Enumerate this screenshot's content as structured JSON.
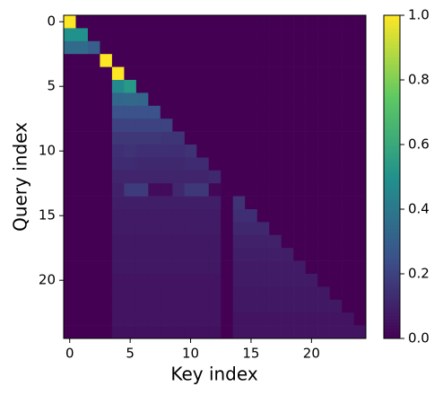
{
  "chart_data": {
    "type": "heatmap",
    "xlabel": "Key index",
    "ylabel": "Query index",
    "xlim": [
      -0.5,
      24.5
    ],
    "ylim": [
      -0.5,
      24.5
    ],
    "y_inverted": true,
    "xticks": [
      0,
      5,
      10,
      15,
      20
    ],
    "yticks": [
      0,
      5,
      10,
      15,
      20
    ],
    "colormap": "viridis",
    "clim": [
      0,
      1
    ],
    "cticks": [
      {
        "value": 0,
        "label": "0.0"
      },
      {
        "value": 0.2,
        "label": "0.2"
      },
      {
        "value": 0.4,
        "label": "0.4"
      },
      {
        "value": 0.6,
        "label": "0.6"
      },
      {
        "value": 0.8,
        "label": "0.8"
      },
      {
        "value": 1,
        "label": "1.0"
      }
    ],
    "z": [
      [
        1,
        0,
        0,
        0,
        0,
        0,
        0,
        0,
        0,
        0,
        0,
        0,
        0,
        0,
        0,
        0,
        0,
        0,
        0,
        0,
        0,
        0,
        0,
        0,
        0
      ],
      [
        0.5,
        0.5,
        0,
        0,
        0,
        0,
        0,
        0,
        0,
        0,
        0,
        0,
        0,
        0,
        0,
        0,
        0,
        0,
        0,
        0,
        0,
        0,
        0,
        0,
        0
      ],
      [
        0.35,
        0.35,
        0.3,
        0,
        0,
        0,
        0,
        0,
        0,
        0,
        0,
        0,
        0,
        0,
        0,
        0,
        0,
        0,
        0,
        0,
        0,
        0,
        0,
        0,
        0
      ],
      [
        0,
        0,
        0,
        1,
        0,
        0,
        0,
        0,
        0,
        0,
        0,
        0,
        0,
        0,
        0,
        0,
        0,
        0,
        0,
        0,
        0,
        0,
        0,
        0,
        0
      ],
      [
        0,
        0,
        0,
        0,
        1,
        0,
        0,
        0,
        0,
        0,
        0,
        0,
        0,
        0,
        0,
        0,
        0,
        0,
        0,
        0,
        0,
        0,
        0,
        0,
        0
      ],
      [
        0,
        0,
        0,
        0,
        0.47,
        0.53,
        0,
        0,
        0,
        0,
        0,
        0,
        0,
        0,
        0,
        0,
        0,
        0,
        0,
        0,
        0,
        0,
        0,
        0,
        0
      ],
      [
        0,
        0,
        0,
        0,
        0.33,
        0.34,
        0.33,
        0,
        0,
        0,
        0,
        0,
        0,
        0,
        0,
        0,
        0,
        0,
        0,
        0,
        0,
        0,
        0,
        0,
        0
      ],
      [
        0,
        0,
        0,
        0,
        0.25,
        0.25,
        0.25,
        0.25,
        0,
        0,
        0,
        0,
        0,
        0,
        0,
        0,
        0,
        0,
        0,
        0,
        0,
        0,
        0,
        0,
        0
      ],
      [
        0,
        0,
        0,
        0,
        0.2,
        0.2,
        0.2,
        0.2,
        0.2,
        0,
        0,
        0,
        0,
        0,
        0,
        0,
        0,
        0,
        0,
        0,
        0,
        0,
        0,
        0,
        0
      ],
      [
        0,
        0,
        0,
        0,
        0.17,
        0.17,
        0.17,
        0.17,
        0.16,
        0.16,
        0,
        0,
        0,
        0,
        0,
        0,
        0,
        0,
        0,
        0,
        0,
        0,
        0,
        0,
        0
      ],
      [
        0,
        0,
        0,
        0,
        0.14,
        0.15,
        0.14,
        0.14,
        0.14,
        0.14,
        0.15,
        0,
        0,
        0,
        0,
        0,
        0,
        0,
        0,
        0,
        0,
        0,
        0,
        0,
        0
      ],
      [
        0,
        0,
        0,
        0,
        0.13,
        0.13,
        0.12,
        0.12,
        0.12,
        0.12,
        0.13,
        0.13,
        0,
        0,
        0,
        0,
        0,
        0,
        0,
        0,
        0,
        0,
        0,
        0,
        0
      ],
      [
        0,
        0,
        0,
        0,
        0.11,
        0.11,
        0.11,
        0.11,
        0.11,
        0.11,
        0.11,
        0.11,
        0.12,
        0,
        0,
        0,
        0,
        0,
        0,
        0,
        0,
        0,
        0,
        0,
        0
      ],
      [
        0,
        0,
        0,
        0,
        0.1,
        0.18,
        0.18,
        0.03,
        0.03,
        0.12,
        0.17,
        0.17,
        0.02,
        0,
        0,
        0,
        0,
        0,
        0,
        0,
        0,
        0,
        0,
        0,
        0
      ],
      [
        0,
        0,
        0,
        0,
        0.09,
        0.09,
        0.09,
        0.09,
        0.09,
        0.09,
        0.09,
        0.09,
        0.09,
        0,
        0.15,
        0,
        0,
        0,
        0,
        0,
        0,
        0,
        0,
        0,
        0
      ],
      [
        0,
        0,
        0,
        0,
        0.08,
        0.08,
        0.08,
        0.08,
        0.08,
        0.08,
        0.08,
        0.08,
        0.08,
        0,
        0.14,
        0.14,
        0,
        0,
        0,
        0,
        0,
        0,
        0,
        0,
        0
      ],
      [
        0,
        0,
        0,
        0,
        0.08,
        0.08,
        0.08,
        0.08,
        0.08,
        0.08,
        0.08,
        0.08,
        0.08,
        0,
        0.12,
        0.12,
        0.12,
        0,
        0,
        0,
        0,
        0,
        0,
        0,
        0
      ],
      [
        0,
        0,
        0,
        0,
        0.07,
        0.07,
        0.07,
        0.07,
        0.07,
        0.07,
        0.07,
        0.07,
        0.07,
        0,
        0.1,
        0.1,
        0.1,
        0.1,
        0,
        0,
        0,
        0,
        0,
        0,
        0
      ],
      [
        0,
        0,
        0,
        0,
        0.07,
        0.07,
        0.07,
        0.07,
        0.07,
        0.07,
        0.07,
        0.07,
        0.07,
        0,
        0.09,
        0.09,
        0.09,
        0.09,
        0.09,
        0,
        0,
        0,
        0,
        0,
        0
      ],
      [
        0,
        0,
        0,
        0,
        0.07,
        0.07,
        0.07,
        0.07,
        0.07,
        0.07,
        0.07,
        0.07,
        0.07,
        0,
        0.08,
        0.08,
        0.08,
        0.08,
        0.08,
        0.08,
        0,
        0,
        0,
        0,
        0
      ],
      [
        0,
        0,
        0,
        0,
        0.06,
        0.06,
        0.06,
        0.06,
        0.06,
        0.06,
        0.06,
        0.06,
        0.06,
        0,
        0.08,
        0.08,
        0.08,
        0.08,
        0.08,
        0.08,
        0.08,
        0,
        0,
        0,
        0
      ],
      [
        0,
        0,
        0,
        0,
        0.06,
        0.06,
        0.06,
        0.06,
        0.06,
        0.06,
        0.06,
        0.06,
        0.06,
        0,
        0.07,
        0.07,
        0.07,
        0.07,
        0.07,
        0.07,
        0.07,
        0.07,
        0,
        0,
        0
      ],
      [
        0,
        0,
        0,
        0,
        0.06,
        0.06,
        0.06,
        0.06,
        0.06,
        0.06,
        0.06,
        0.06,
        0.06,
        0,
        0.07,
        0.07,
        0.07,
        0.07,
        0.07,
        0.07,
        0.07,
        0.07,
        0.07,
        0,
        0
      ],
      [
        0,
        0,
        0,
        0,
        0.06,
        0.06,
        0.06,
        0.06,
        0.06,
        0.06,
        0.06,
        0.06,
        0.06,
        0,
        0.06,
        0.06,
        0.06,
        0.06,
        0.06,
        0.06,
        0.06,
        0.06,
        0.06,
        0.06,
        0
      ],
      [
        0,
        0,
        0,
        0,
        0.05,
        0.05,
        0.05,
        0.05,
        0.05,
        0.05,
        0.05,
        0.05,
        0.05,
        0,
        0.06,
        0.06,
        0.06,
        0.06,
        0.06,
        0.06,
        0.06,
        0.06,
        0.06,
        0.06,
        0.06
      ]
    ]
  }
}
